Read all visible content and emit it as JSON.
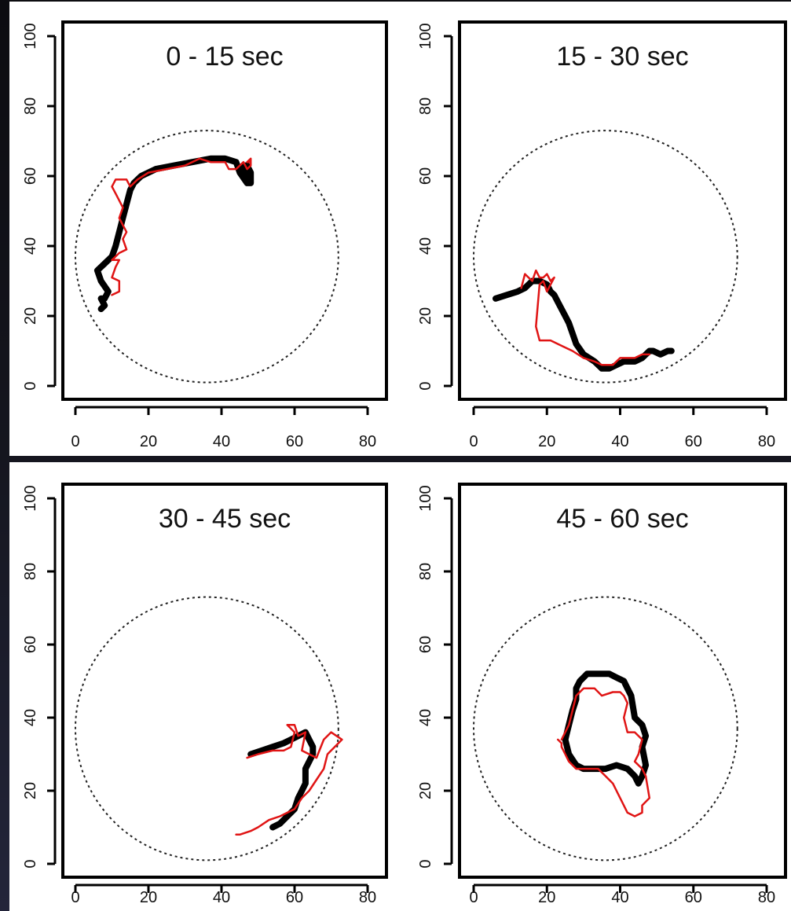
{
  "colors": {
    "true_path": "#000000",
    "estimated_path": "#e01414",
    "arena": "#222222"
  },
  "chart_data": [
    {
      "type": "line",
      "title": "0 - 15 sec",
      "xlim": [
        0,
        80
      ],
      "ylim": [
        0,
        100
      ],
      "xticks": [
        0,
        20,
        40,
        60,
        80
      ],
      "yticks": [
        0,
        20,
        40,
        60,
        80,
        100
      ],
      "arena_circle": {
        "cx": 36,
        "cy": 37,
        "r": 36,
        "style": "dotted"
      },
      "series": [
        {
          "color": "black",
          "x": [
            7,
            8,
            7,
            8,
            9,
            7,
            6,
            8,
            10,
            11,
            12,
            13,
            14,
            15,
            16,
            18,
            22,
            27,
            32,
            37,
            41,
            44,
            45,
            47,
            48,
            48,
            47,
            46,
            47
          ],
          "y": [
            22,
            23,
            25,
            25,
            27,
            30,
            33,
            35,
            37,
            40,
            44,
            48,
            52,
            56,
            58,
            60,
            62,
            63,
            64,
            65,
            65,
            64,
            61,
            58,
            58,
            61,
            63,
            63,
            60
          ]
        },
        {
          "color": "red",
          "x": [
            10,
            12,
            12,
            10,
            11,
            12,
            10,
            12,
            14,
            13,
            14,
            13,
            12,
            13,
            11,
            10,
            11,
            14,
            15,
            17,
            20,
            25,
            30,
            34,
            37,
            39,
            41,
            42,
            44,
            46,
            47,
            48,
            48,
            47,
            48
          ],
          "y": [
            26,
            27,
            30,
            31,
            34,
            36,
            36,
            38,
            39,
            42,
            44,
            46,
            48,
            51,
            55,
            57,
            59,
            59,
            57,
            59,
            61,
            62,
            63,
            65,
            64,
            64,
            64,
            62,
            62,
            64,
            62,
            63,
            65,
            64,
            64
          ]
        }
      ]
    },
    {
      "type": "line",
      "title": "15 - 30 sec",
      "xlim": [
        0,
        80
      ],
      "ylim": [
        0,
        100
      ],
      "xticks": [
        0,
        20,
        40,
        60,
        80
      ],
      "yticks": [
        0,
        20,
        40,
        60,
        80,
        100
      ],
      "arena_circle": {
        "cx": 36,
        "cy": 37,
        "r": 36,
        "style": "dotted"
      },
      "series": [
        {
          "color": "black",
          "x": [
            6,
            9,
            12,
            14,
            16,
            18,
            20,
            21,
            22,
            23,
            24,
            25,
            26,
            27,
            28,
            30,
            33,
            35,
            37,
            39,
            41,
            44,
            46,
            48,
            49,
            51,
            53,
            54
          ],
          "y": [
            25,
            26,
            27,
            28,
            30,
            30,
            29,
            27,
            26,
            24,
            22,
            20,
            18,
            15,
            12,
            9,
            7,
            5,
            5,
            6,
            7,
            7,
            8,
            10,
            10,
            9,
            10,
            10
          ]
        },
        {
          "color": "red",
          "x": [
            13,
            14,
            15,
            16,
            17,
            18,
            19,
            20,
            21,
            22,
            21,
            20,
            19,
            18,
            17,
            18,
            21,
            23,
            25,
            27,
            30,
            33,
            35,
            38,
            40,
            42,
            44,
            46,
            48
          ],
          "y": [
            28,
            32,
            31,
            30,
            33,
            31,
            31,
            32,
            30,
            31,
            29,
            27,
            30,
            29,
            17,
            13,
            13,
            12,
            11,
            10,
            8,
            7,
            6,
            6,
            8,
            8,
            8,
            9,
            9
          ]
        }
      ]
    },
    {
      "type": "line",
      "title": "30 - 45 sec",
      "xlim": [
        0,
        80
      ],
      "ylim": [
        0,
        100
      ],
      "xticks": [
        0,
        20,
        40,
        60,
        80
      ],
      "yticks": [
        0,
        20,
        40,
        60,
        80,
        100
      ],
      "arena_circle": {
        "cx": 36,
        "cy": 37,
        "r": 36,
        "style": "dotted"
      },
      "series": [
        {
          "color": "black",
          "x": [
            48,
            51,
            54,
            57,
            59,
            61,
            63,
            64,
            65,
            65,
            64,
            63,
            63,
            62,
            61,
            60,
            58,
            56,
            54
          ],
          "y": [
            30,
            31,
            32,
            33,
            34,
            35,
            36,
            34,
            32,
            30,
            28,
            26,
            22,
            20,
            18,
            15,
            13,
            11,
            10
          ]
        },
        {
          "color": "red",
          "x": [
            47,
            50,
            54,
            57,
            59,
            60,
            58,
            60,
            61,
            63,
            62,
            66,
            68,
            70,
            73,
            69,
            68,
            66,
            64,
            62,
            60,
            58,
            56,
            53,
            50,
            48,
            45,
            44
          ],
          "y": [
            29,
            30,
            31,
            31,
            32,
            36,
            38,
            38,
            35,
            36,
            31,
            29,
            34,
            36,
            34,
            30,
            26,
            23,
            20,
            18,
            15,
            14,
            13,
            12,
            10,
            9,
            8,
            8
          ]
        }
      ]
    },
    {
      "type": "line",
      "title": "45 - 60 sec",
      "xlim": [
        0,
        80
      ],
      "ylim": [
        0,
        100
      ],
      "xticks": [
        0,
        20,
        40,
        60,
        80
      ],
      "yticks": [
        0,
        20,
        40,
        60,
        80,
        100
      ],
      "arena_circle": {
        "cx": 36,
        "cy": 37,
        "r": 36,
        "style": "dotted"
      },
      "series": [
        {
          "color": "black",
          "x": [
            31,
            34,
            37,
            39,
            41,
            42,
            43,
            44,
            46,
            47,
            46,
            47,
            46,
            45,
            44,
            42,
            39,
            36,
            33,
            30,
            28,
            26,
            25,
            26,
            27,
            28,
            28,
            29,
            30,
            31
          ],
          "y": [
            52,
            52,
            52,
            51,
            50,
            48,
            46,
            40,
            38,
            35,
            32,
            27,
            24,
            22,
            24,
            26,
            27,
            26,
            26,
            26,
            27,
            30,
            34,
            38,
            42,
            45,
            48,
            50,
            51,
            52
          ]
        },
        {
          "color": "red",
          "x": [
            24,
            26,
            27,
            28,
            30,
            33,
            35,
            38,
            40,
            41,
            42,
            41,
            42,
            44,
            46,
            45,
            44,
            46,
            47,
            48,
            46,
            46,
            44,
            42,
            40,
            38,
            36,
            34,
            32,
            30,
            28,
            27,
            26,
            25,
            24,
            24,
            23
          ],
          "y": [
            34,
            38,
            42,
            46,
            48,
            48,
            46,
            47,
            47,
            46,
            44,
            40,
            36,
            36,
            34,
            30,
            28,
            26,
            24,
            18,
            16,
            14,
            13,
            14,
            18,
            22,
            24,
            26,
            26,
            26,
            26,
            27,
            28,
            30,
            32,
            33,
            34
          ]
        }
      ]
    }
  ]
}
